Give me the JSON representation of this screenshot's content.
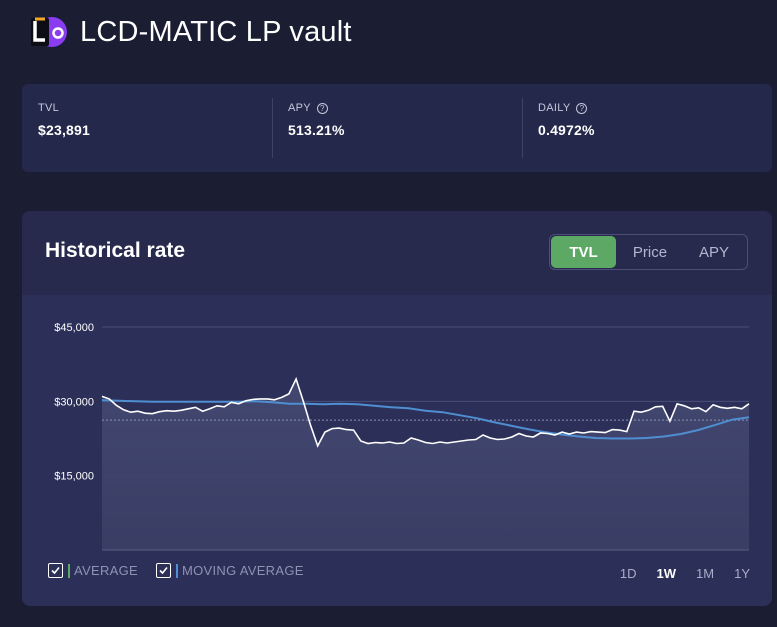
{
  "vault": {
    "title": "LCD-MATIC LP vault",
    "logo_icon": "lcd-logo-icon"
  },
  "stats": [
    {
      "label": "TVL",
      "value": "$23,891",
      "help": false
    },
    {
      "label": "APY",
      "value": "513.21%",
      "help": true
    },
    {
      "label": "DAILY",
      "value": "0.4972%",
      "help": true
    }
  ],
  "chart_section": {
    "title": "Historical rate",
    "tabs": [
      {
        "label": "TVL",
        "active": true
      },
      {
        "label": "Price",
        "active": false
      },
      {
        "label": "APY",
        "active": false
      }
    ],
    "legend": [
      {
        "label": "AVERAGE",
        "checked": true,
        "color": "#5ea866"
      },
      {
        "label": "MOVING AVERAGE",
        "checked": true,
        "color": "#4f8ed1"
      }
    ],
    "ranges": [
      {
        "label": "1D",
        "active": false
      },
      {
        "label": "1W",
        "active": true
      },
      {
        "label": "1M",
        "active": false
      },
      {
        "label": "1Y",
        "active": false
      }
    ]
  },
  "chart_data": {
    "type": "line",
    "yticks": [
      "$45,000",
      "$30,000",
      "$15,000"
    ],
    "ytick_values": [
      45000,
      30000,
      15000
    ],
    "ylim": [
      0,
      45000
    ],
    "average": 26200,
    "series": [
      {
        "values": [
          31000,
          30500,
          29200,
          28300,
          27800,
          28000,
          27600,
          27500,
          27900,
          28100,
          28000,
          28200,
          28500,
          28800,
          28000,
          28500,
          29100,
          28900,
          29800,
          29500,
          30100,
          30400,
          30500,
          30500,
          30300,
          30800,
          31500,
          34500,
          30000,
          25200,
          21000,
          23800,
          24500,
          24600,
          24300,
          24200,
          22000,
          21500,
          21700,
          21600,
          21800,
          21500,
          21600,
          22600,
          22200,
          21700,
          21500,
          21800,
          21600,
          21800,
          22000,
          22200,
          22300,
          23200,
          22600,
          22300,
          22400,
          22800,
          23500,
          23000,
          22800,
          23600,
          23500,
          23200,
          23800,
          23400,
          23800,
          23600,
          23900,
          23800,
          23700,
          24300,
          24200,
          23900,
          28000,
          27800,
          28200,
          28900,
          29000,
          26000,
          29500,
          29100,
          28500,
          28700,
          27900,
          29300,
          28800,
          28600,
          28800,
          28500,
          29500
        ],
        "color": "#ffffff"
      },
      {
        "name": "MOVING AVERAGE",
        "values": [
          30200,
          30100,
          30000,
          29900,
          29900,
          29900,
          29900,
          29900,
          29900,
          30000,
          29800,
          29500,
          29500,
          29400,
          29500,
          29400,
          29100,
          28800,
          28600,
          28100,
          27800,
          27200,
          26600,
          25800,
          25100,
          24400,
          23800,
          23300,
          22900,
          22600,
          22500,
          22500,
          22600,
          22900,
          23400,
          24200,
          25200,
          26300,
          26800
        ],
        "color": "#4f8ed1"
      }
    ]
  }
}
